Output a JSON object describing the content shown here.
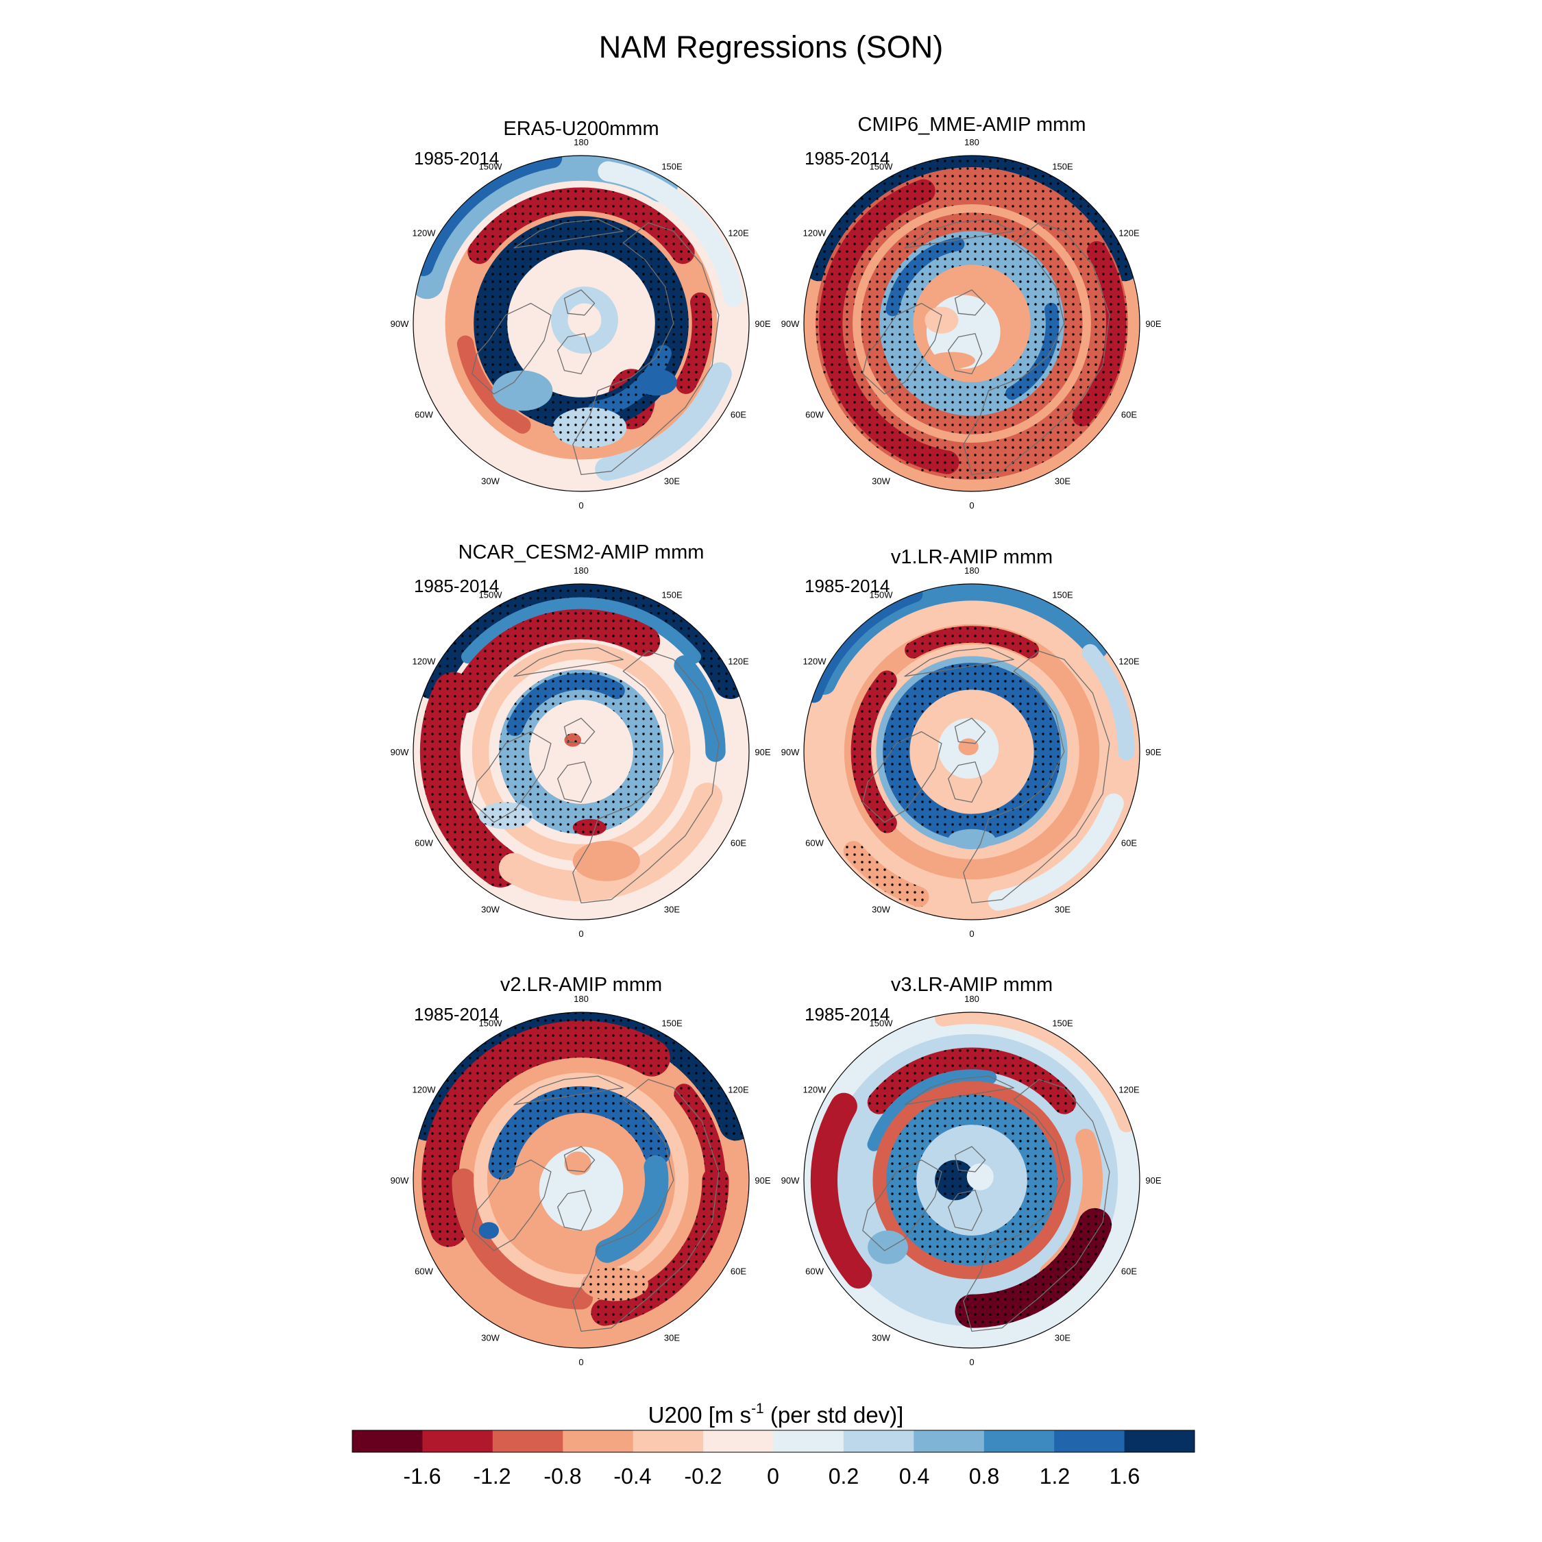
{
  "figure": {
    "title": "NAM Regressions (SON)",
    "panels": [
      {
        "title": "ERA5-U200mmm",
        "period": "1985-2014",
        "pattern": "era5"
      },
      {
        "title": "CMIP6_MME-AMIP  mmm",
        "period": "1985-2014",
        "pattern": "mme"
      },
      {
        "title": "NCAR_CESM2-AMIP  mmm",
        "period": "1985-2014",
        "pattern": "cesm2"
      },
      {
        "title": "v1.LR-AMIP  mmm",
        "period": "1985-2014",
        "pattern": "v1"
      },
      {
        "title": "v2.LR-AMIP  mmm",
        "period": "1985-2014",
        "pattern": "v2"
      },
      {
        "title": "v3.LR-AMIP  mmm",
        "period": "1985-2014",
        "pattern": "v3"
      }
    ],
    "longitude_labels": [
      "180",
      "150E",
      "120E",
      "90E",
      "60E",
      "30E",
      "0",
      "30W",
      "60W",
      "90W",
      "120W",
      "150W"
    ]
  },
  "colorbar": {
    "title_prefix": "U200 [m s",
    "title_superscript": "-1",
    "title_suffix": " (per std dev)]",
    "tick_labels": [
      "-1.6",
      "-1.2",
      "-0.8",
      "-0.4",
      "-0.2",
      "0",
      "0.2",
      "0.4",
      "0.8",
      "1.2",
      "1.6"
    ],
    "colors": [
      "#67001f",
      "#b2182b",
      "#d6604d",
      "#f4a582",
      "#fbc9b0",
      "#fbeae3",
      "#e3eef5",
      "#bcd8ea",
      "#7fb4d6",
      "#3d8ac1",
      "#2166ac",
      "#053061"
    ]
  }
}
